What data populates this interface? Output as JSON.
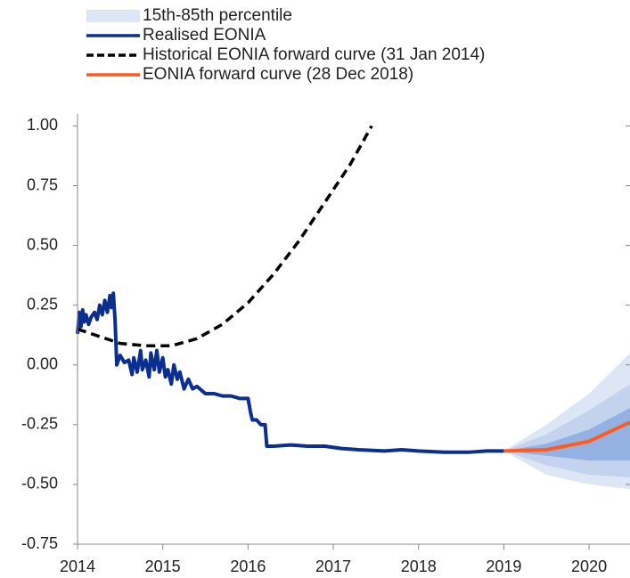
{
  "chart_data": {
    "type": "line",
    "xlim": [
      2014,
      2020.48
    ],
    "ylim": [
      -0.75,
      1.05
    ],
    "xticks": [
      2014,
      2015,
      2016,
      2017,
      2018,
      2019,
      2020
    ],
    "yticks": [
      {
        "value": 1,
        "label": "1.00"
      },
      {
        "value": 0.75,
        "label": "0.75"
      },
      {
        "value": 0.5,
        "label": "0.50"
      },
      {
        "value": 0.25,
        "label": "0.25"
      },
      {
        "value": 0,
        "label": "0.00"
      },
      {
        "value": -0.25,
        "label": "-0.25"
      },
      {
        "value": -0.5,
        "label": "-0.50"
      },
      {
        "value": -0.75,
        "label": "-0.75"
      }
    ],
    "grid": false,
    "series": [
      {
        "name": "15th-85th percentile",
        "kind": "band",
        "color": "#dde6f4",
        "x": [
          2019.0,
          2019.5,
          2020.0,
          2020.48
        ],
        "upper": [
          -0.36,
          -0.25,
          -0.12,
          0.05
        ],
        "lower": [
          -0.36,
          -0.46,
          -0.5,
          -0.52
        ]
      },
      {
        "name": "Realised EONIA",
        "kind": "line",
        "color": "#0b2f8f",
        "x": [
          2014.0,
          2014.02,
          2014.04,
          2014.06,
          2014.08,
          2014.1,
          2014.13,
          2014.16,
          2014.2,
          2014.23,
          2014.26,
          2014.29,
          2014.32,
          2014.35,
          2014.38,
          2014.4,
          2014.42,
          2014.44,
          2014.45,
          2014.46,
          2014.5,
          2014.55,
          2014.6,
          2014.64,
          2014.66,
          2014.7,
          2014.74,
          2014.76,
          2014.8,
          2014.84,
          2014.86,
          2014.9,
          2014.93,
          2014.96,
          2015.0,
          2015.03,
          2015.06,
          2015.1,
          2015.13,
          2015.17,
          2015.2,
          2015.25,
          2015.3,
          2015.35,
          2015.4,
          2015.5,
          2015.6,
          2015.7,
          2015.8,
          2015.9,
          2016.0,
          2016.03,
          2016.05,
          2016.1,
          2016.15,
          2016.2,
          2016.22,
          2016.3,
          2016.5,
          2016.7,
          2016.9,
          2017.1,
          2017.3,
          2017.6,
          2017.8,
          2018.0,
          2018.3,
          2018.6,
          2018.8,
          2019.0
        ],
        "values": [
          0.13,
          0.22,
          0.16,
          0.23,
          0.18,
          0.21,
          0.17,
          0.2,
          0.22,
          0.19,
          0.25,
          0.21,
          0.27,
          0.22,
          0.29,
          0.24,
          0.3,
          0.19,
          0.1,
          0.0,
          0.04,
          0.01,
          0.02,
          -0.04,
          0.03,
          -0.03,
          0.06,
          -0.02,
          0.02,
          -0.05,
          0.05,
          -0.02,
          0.06,
          -0.03,
          0.03,
          -0.05,
          -0.02,
          -0.08,
          0.0,
          -0.06,
          -0.03,
          -0.1,
          -0.06,
          -0.1,
          -0.09,
          -0.12,
          -0.12,
          -0.13,
          -0.13,
          -0.14,
          -0.14,
          -0.2,
          -0.23,
          -0.23,
          -0.25,
          -0.25,
          -0.34,
          -0.34,
          -0.335,
          -0.34,
          -0.34,
          -0.35,
          -0.355,
          -0.36,
          -0.355,
          -0.36,
          -0.365,
          -0.365,
          -0.36,
          -0.36
        ]
      },
      {
        "name": "Historical EONIA forward curve (31 Jan 2014)",
        "kind": "line",
        "dash": true,
        "color": "#000000",
        "x": [
          2014.0,
          2014.5,
          2014.8,
          2015.1,
          2015.4,
          2015.7,
          2016.0,
          2016.3,
          2016.6,
          2016.9,
          2017.2,
          2017.45
        ],
        "values": [
          0.15,
          0.09,
          0.08,
          0.08,
          0.11,
          0.17,
          0.26,
          0.38,
          0.52,
          0.68,
          0.84,
          1.0
        ]
      },
      {
        "name": "EONIA forward curve (28 Dec 2018)",
        "kind": "line",
        "color": "#ff5a1f",
        "x": [
          2019.0,
          2019.5,
          2020.0,
          2020.48
        ],
        "values": [
          -0.36,
          -0.355,
          -0.32,
          -0.24
        ]
      },
      {
        "kind": "band",
        "color": "#c3d3ee",
        "x": [
          2019.0,
          2019.5,
          2020.0,
          2020.48
        ],
        "upper": [
          -0.36,
          -0.29,
          -0.19,
          -0.08
        ],
        "lower": [
          -0.36,
          -0.42,
          -0.46,
          -0.47
        ]
      },
      {
        "kind": "band",
        "color": "#93b2e2",
        "x": [
          2019.0,
          2019.5,
          2020.0,
          2020.48
        ],
        "upper": [
          -0.36,
          -0.33,
          -0.27,
          -0.18
        ],
        "lower": [
          -0.36,
          -0.38,
          -0.4,
          -0.4
        ]
      }
    ]
  }
}
